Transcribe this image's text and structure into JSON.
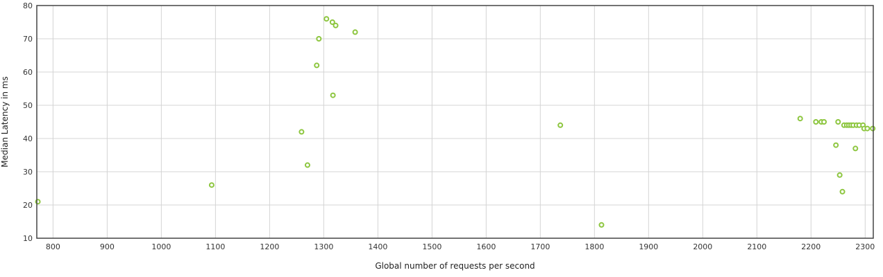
{
  "chart_data": {
    "type": "scatter",
    "title": "",
    "xlabel": "Global number of requests per second",
    "ylabel": "Median Latency in ms",
    "xlim": [
      770,
      2315
    ],
    "ylim": [
      10,
      80
    ],
    "xticks": [
      800,
      900,
      1000,
      1100,
      1200,
      1300,
      1400,
      1500,
      1600,
      1700,
      1800,
      1900,
      2000,
      2100,
      2200,
      2300
    ],
    "yticks": [
      10,
      20,
      30,
      40,
      50,
      60,
      70,
      80
    ],
    "grid": true,
    "legend": "none",
    "point_color": "#8dc63f",
    "series": [
      {
        "points": [
          [
            772,
            21
          ],
          [
            1093,
            26
          ],
          [
            1259,
            42
          ],
          [
            1270,
            32
          ],
          [
            1287,
            62
          ],
          [
            1291,
            70
          ],
          [
            1305,
            76
          ],
          [
            1316,
            75
          ],
          [
            1317,
            53
          ],
          [
            1322,
            74
          ],
          [
            1358,
            72
          ],
          [
            1737,
            44
          ],
          [
            1813,
            14
          ],
          [
            2180,
            46
          ],
          [
            2209,
            45
          ],
          [
            2219,
            45
          ],
          [
            2224,
            45
          ],
          [
            2246,
            38
          ],
          [
            2250,
            45
          ],
          [
            2253,
            29
          ],
          [
            2258,
            24
          ],
          [
            2261,
            44
          ],
          [
            2266,
            44
          ],
          [
            2270,
            44
          ],
          [
            2274,
            44
          ],
          [
            2278,
            44
          ],
          [
            2282,
            37
          ],
          [
            2284,
            44
          ],
          [
            2289,
            44
          ],
          [
            2296,
            44
          ],
          [
            2298,
            43
          ],
          [
            2304,
            43
          ],
          [
            2314,
            43
          ]
        ]
      }
    ]
  }
}
